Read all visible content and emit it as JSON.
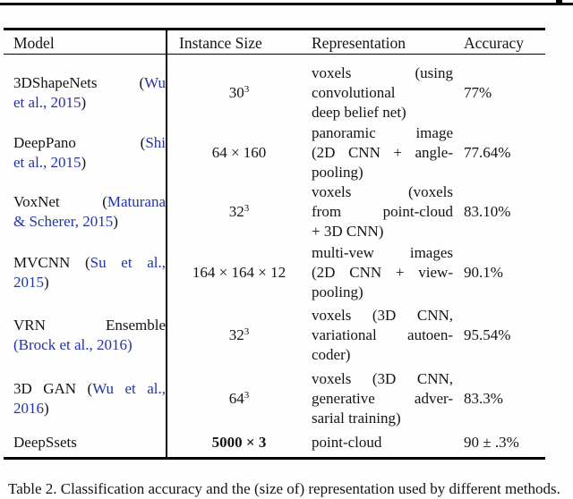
{
  "colors": {
    "link_blue": "#2333a8",
    "text": "#141414",
    "rule": "#000000"
  },
  "page": {
    "caption": "Table 2. Classification accuracy and the (size of) representation used by different methods."
  },
  "table": {
    "headers": [
      "Model",
      "Instance Size",
      "Representation",
      "Accuracy"
    ],
    "rows": [
      {
        "h": 68,
        "model_lines": [
          {
            "just": 1,
            "segs": [
              [
                "3DShapeNets (",
                0
              ],
              [
                "Wu",
                1
              ]
            ]
          },
          {
            "just": 0,
            "segs": [
              [
                "et al., 2015",
                1
              ],
              [
                ")",
                0
              ]
            ]
          }
        ],
        "instance": "30^3",
        "bold": false,
        "rep_lines": [
          {
            "just": 1,
            "segs": [
              [
                "voxels (using",
                0
              ]
            ]
          },
          {
            "just": 1,
            "segs": [
              [
                "convolutional",
                0
              ]
            ]
          },
          {
            "just": 0,
            "segs": [
              [
                "deep belief net)",
                0
              ]
            ]
          }
        ],
        "accuracy": "77%"
      },
      {
        "h": 66,
        "model_lines": [
          {
            "just": 1,
            "segs": [
              [
                "DeepPano (",
                0
              ],
              [
                "Shi",
                1
              ]
            ]
          },
          {
            "just": 0,
            "segs": [
              [
                "et al., 2015",
                1
              ],
              [
                ")",
                0
              ]
            ]
          }
        ],
        "instance": "64 × 160",
        "bold": false,
        "rep_lines": [
          {
            "just": 1,
            "segs": [
              [
                "panoramic image",
                0
              ]
            ]
          },
          {
            "just": 1,
            "segs": [
              [
                "(2D CNN + angle-",
                0
              ]
            ]
          },
          {
            "just": 0,
            "segs": [
              [
                "pooling)",
                0
              ]
            ]
          }
        ],
        "accuracy": "77.64%"
      },
      {
        "h": 66,
        "model_lines": [
          {
            "just": 1,
            "segs": [
              [
                "VoxNet (",
                0
              ],
              [
                "Maturana",
                1
              ]
            ]
          },
          {
            "just": 0,
            "segs": [
              [
                "& Scherer, 2015",
                1
              ],
              [
                ")",
                0
              ]
            ]
          }
        ],
        "instance": "32^3",
        "bold": false,
        "rep_lines": [
          {
            "just": 1,
            "segs": [
              [
                "voxels (voxels",
                0
              ]
            ]
          },
          {
            "just": 1,
            "segs": [
              [
                "from point-cloud",
                0
              ]
            ]
          },
          {
            "just": 0,
            "segs": [
              [
                "+ 3D CNN)",
                0
              ]
            ]
          }
        ],
        "accuracy": "83.10%"
      },
      {
        "h": 70,
        "model_lines": [
          {
            "just": 1,
            "segs": [
              [
                "MVCNN (",
                0
              ],
              [
                "Su et al.,",
                1
              ]
            ]
          },
          {
            "just": 0,
            "segs": [
              [
                "2015",
                1
              ],
              [
                ")",
                0
              ]
            ]
          }
        ],
        "instance": "164 × 164 × 12",
        "bold": false,
        "rep_lines": [
          {
            "just": 1,
            "segs": [
              [
                "multi-vew images",
                0
              ]
            ]
          },
          {
            "just": 1,
            "segs": [
              [
                "(2D CNN + view-",
                0
              ]
            ]
          },
          {
            "just": 0,
            "segs": [
              [
                "pooling)",
                0
              ]
            ]
          }
        ],
        "accuracy": "90.1%"
      },
      {
        "h": 70,
        "model_lines": [
          {
            "just": 1,
            "segs": [
              [
                "VRN Ensemble",
                0
              ]
            ]
          },
          {
            "just": 0,
            "segs": [
              [
                "(Brock et al., 2016)",
                1
              ]
            ]
          }
        ],
        "instance": "32^3",
        "bold": false,
        "rep_lines": [
          {
            "just": 1,
            "segs": [
              [
                "voxels (3D CNN,",
                0
              ]
            ]
          },
          {
            "just": 1,
            "segs": [
              [
                "variational autoen-",
                0
              ]
            ]
          },
          {
            "just": 0,
            "segs": [
              [
                "coder)",
                0
              ]
            ]
          }
        ],
        "accuracy": "95.54%"
      },
      {
        "h": 71,
        "model_lines": [
          {
            "just": 1,
            "segs": [
              [
                "3D GAN (",
                0
              ],
              [
                "Wu et al.,",
                1
              ]
            ]
          },
          {
            "just": 0,
            "segs": [
              [
                "2016",
                1
              ],
              [
                ")",
                0
              ]
            ]
          }
        ],
        "instance": "64^3",
        "bold": false,
        "rep_lines": [
          {
            "just": 1,
            "segs": [
              [
                "voxels (3D CNN,",
                0
              ]
            ]
          },
          {
            "just": 1,
            "segs": [
              [
                "generative adver-",
                0
              ]
            ]
          },
          {
            "just": 0,
            "segs": [
              [
                "sarial training)",
                0
              ]
            ]
          }
        ],
        "accuracy": "83.3%"
      },
      {
        "h": 27,
        "model_lines": [
          {
            "just": 0,
            "segs": [
              [
                "DeepSsets",
                0
              ]
            ]
          }
        ],
        "instance": "5000 × 3",
        "bold": true,
        "rep_lines": [
          {
            "just": 0,
            "segs": [
              [
                "point-cloud",
                0
              ]
            ]
          }
        ],
        "accuracy": "90 ± .3%"
      }
    ]
  }
}
